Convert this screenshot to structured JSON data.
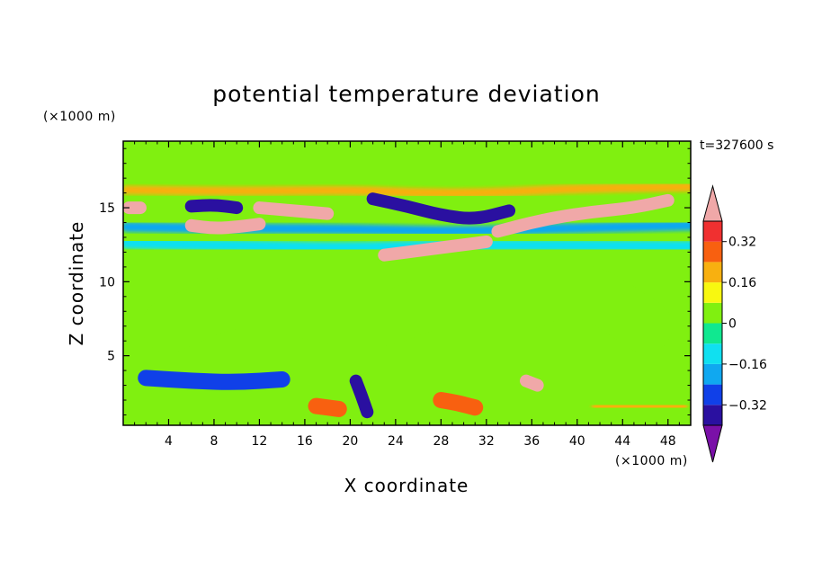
{
  "chart_data": {
    "type": "heatmap",
    "title": "potential temperature deviation",
    "xlabel": "X coordinate",
    "ylabel": "Z coordinate",
    "x_unit": "(×1000 m)",
    "y_unit": "(×1000 m)",
    "time_label": "t=327600 s",
    "xlim": [
      0,
      50
    ],
    "ylim": [
      0.3,
      19.5
    ],
    "x_ticks": [
      4,
      8,
      12,
      16,
      20,
      24,
      28,
      32,
      36,
      40,
      44,
      48
    ],
    "y_ticks": [
      5,
      10,
      15
    ],
    "background_level": "0 to 0.08",
    "colorbar": {
      "levels": [
        -0.4,
        -0.32,
        -0.24,
        -0.16,
        -0.08,
        0,
        0.08,
        0.16,
        0.24,
        0.32,
        0.4
      ],
      "labels": [
        "0.32",
        "0.16",
        "0",
        "−0.16",
        "−0.32"
      ],
      "label_values": [
        0.32,
        0.16,
        0,
        -0.16,
        -0.32
      ],
      "colors": [
        "#7a10a8",
        "#2a10a0",
        "#1040e8",
        "#10a8f0",
        "#10e0f0",
        "#10e890",
        "#80f010",
        "#f8f810",
        "#f8b010",
        "#f86010",
        "#f03030",
        "#f0a8a8"
      ]
    },
    "features": [
      {
        "x": [
          0.3,
          12,
          20,
          30,
          50
        ],
        "z": [
          12.6,
          12.4,
          12.3,
          12.5,
          12.4
        ],
        "value": -0.12
      },
      {
        "x": [
          0.3,
          8,
          16,
          24,
          30,
          38,
          50
        ],
        "z": [
          13.7,
          13.6,
          13.6,
          13.5,
          13.4,
          13.6,
          13.8
        ],
        "value": -0.2
      },
      {
        "x": [
          0.3,
          10,
          20,
          26,
          32,
          40,
          50
        ],
        "z": [
          16.2,
          16.1,
          16.2,
          16.0,
          16.0,
          16.3,
          16.4
        ],
        "value": 0.22
      },
      {
        "x": [
          6,
          8,
          10
        ],
        "z": [
          15.1,
          15.2,
          15.0
        ],
        "value": -0.38
      },
      {
        "x": [
          22,
          25,
          28,
          31,
          34
        ],
        "z": [
          15.6,
          15.1,
          14.5,
          14.2,
          14.8
        ],
        "value": -0.38
      },
      {
        "x": [
          6,
          8,
          10,
          12
        ],
        "z": [
          13.8,
          13.6,
          13.7,
          13.9
        ],
        "value": 0.42
      },
      {
        "x": [
          12,
          15,
          18
        ],
        "z": [
          15.0,
          14.8,
          14.6
        ],
        "value": 0.42
      },
      {
        "x": [
          23,
          26,
          29,
          32
        ],
        "z": [
          11.8,
          12.1,
          12.4,
          12.7
        ],
        "value": 0.42
      },
      {
        "x": [
          33,
          37,
          41,
          45,
          48
        ],
        "z": [
          13.4,
          14.2,
          14.7,
          15.0,
          15.5
        ],
        "value": 0.42
      },
      {
        "x": [
          0.5,
          1.5
        ],
        "z": [
          15.0,
          15.0
        ],
        "value": 0.42
      },
      {
        "x": [
          35.5,
          36.5
        ],
        "z": [
          3.3,
          3.0
        ],
        "value": 0.42
      },
      {
        "x": [
          20.5,
          21.0,
          21.5
        ],
        "z": [
          3.3,
          2.3,
          1.2
        ],
        "value": -0.34
      },
      {
        "x": [
          2,
          6,
          10,
          14
        ],
        "z": [
          3.5,
          3.3,
          3.2,
          3.4
        ],
        "value": -0.3
      },
      {
        "x": [
          28,
          29.5,
          31
        ],
        "z": [
          2.0,
          1.8,
          1.5
        ],
        "value": 0.24
      },
      {
        "x": [
          17,
          19
        ],
        "z": [
          1.6,
          1.4
        ],
        "value": 0.24
      },
      {
        "x": [
          42,
          46,
          49
        ],
        "z": [
          1.6,
          1.5,
          1.6
        ],
        "value": 0.18
      },
      {
        "x": [
          4,
          10,
          16,
          22,
          28,
          34,
          40,
          46
        ],
        "z": [
          7,
          9,
          8,
          7,
          9,
          8,
          10,
          7
        ],
        "value": 0.06
      }
    ]
  }
}
